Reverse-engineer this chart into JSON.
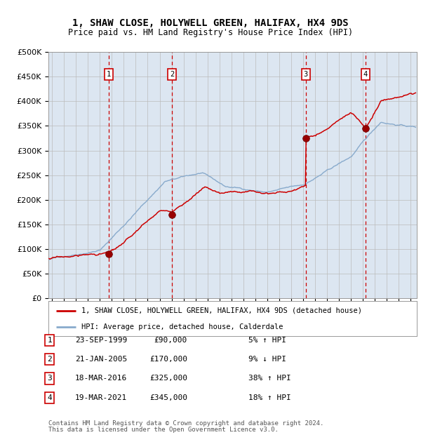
{
  "title1": "1, SHAW CLOSE, HOLYWELL GREEN, HALIFAX, HX4 9DS",
  "title2": "Price paid vs. HM Land Registry's House Price Index (HPI)",
  "ylim": [
    0,
    500000
  ],
  "yticks": [
    0,
    50000,
    100000,
    150000,
    200000,
    250000,
    300000,
    350000,
    400000,
    450000,
    500000
  ],
  "xlim_start": 1994.7,
  "xlim_end": 2025.5,
  "transactions": [
    {
      "num": 1,
      "date": "23-SEP-1999",
      "price": 90000,
      "pct": "5%",
      "dir": "↑",
      "year": 1999.73
    },
    {
      "num": 2,
      "date": "21-JAN-2005",
      "price": 170000,
      "pct": "9%",
      "dir": "↓",
      "year": 2005.05
    },
    {
      "num": 3,
      "date": "18-MAR-2016",
      "price": 325000,
      "pct": "38%",
      "dir": "↑",
      "year": 2016.21
    },
    {
      "num": 4,
      "date": "19-MAR-2021",
      "price": 345000,
      "pct": "18%",
      "dir": "↑",
      "year": 2021.21
    }
  ],
  "legend1": "1, SHAW CLOSE, HOLYWELL GREEN, HALIFAX, HX4 9DS (detached house)",
  "legend2": "HPI: Average price, detached house, Calderdale",
  "footer1": "Contains HM Land Registry data © Crown copyright and database right 2024.",
  "footer2": "This data is licensed under the Open Government Licence v3.0.",
  "line_color": "#cc0000",
  "hpi_color": "#88aacc",
  "bg_color": "#dce6f1",
  "grid_color": "#bbbbbb",
  "dashed_color": "#cc0000"
}
